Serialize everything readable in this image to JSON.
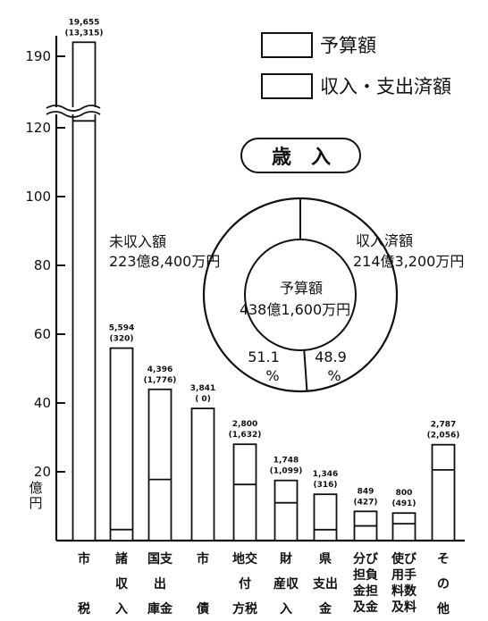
{
  "chart_data": {
    "type": "bar",
    "title": "歳　入",
    "ylabel": [
      "億",
      "円"
    ],
    "y_ticks": [
      {
        "value": 20,
        "label": "20"
      },
      {
        "value": 40,
        "label": "40"
      },
      {
        "value": 60,
        "label": "60"
      },
      {
        "value": 80,
        "label": "80"
      },
      {
        "value": 100,
        "label": "100"
      },
      {
        "value": 120,
        "label": "120"
      },
      {
        "value": 190,
        "label": "190"
      }
    ],
    "axis_break": [
      120,
      190
    ],
    "legend": [
      {
        "id": "budget",
        "label": "予算額"
      },
      {
        "id": "actual",
        "label": "収入・支出済額"
      }
    ],
    "categories": [
      {
        "lines": [
          "市",
          "",
          "税"
        ],
        "budget": 196.55,
        "actual": 133.15,
        "budget_label": "19,655",
        "actual_label": "(13,315)"
      },
      {
        "lines": [
          "諸",
          "収",
          "入"
        ],
        "budget": 55.94,
        "actual": 3.2,
        "budget_label": "5,594",
        "actual_label": "(320)"
      },
      {
        "lines": [
          "国支",
          "出",
          "庫金"
        ],
        "budget": 43.96,
        "actual": 17.76,
        "budget_label": "4,396",
        "actual_label": "(1,776)"
      },
      {
        "lines": [
          "市",
          "",
          "債"
        ],
        "budget": 38.41,
        "actual": 0,
        "budget_label": "3,841",
        "actual_label": "( 0)"
      },
      {
        "lines": [
          "地交",
          "付",
          "方税"
        ],
        "budget": 28.0,
        "actual": 16.32,
        "budget_label": "2,800",
        "actual_label": "(1,632)"
      },
      {
        "lines": [
          "財",
          "産収",
          "入"
        ],
        "budget": 17.48,
        "actual": 10.99,
        "budget_label": "1,748",
        "actual_label": "(1,099)"
      },
      {
        "lines": [
          "県",
          "支出",
          "金"
        ],
        "budget": 13.46,
        "actual": 3.16,
        "budget_label": "1,346",
        "actual_label": "(316)"
      },
      {
        "lines": [
          "分び",
          "担負",
          "金担",
          "及金"
        ],
        "budget": 8.49,
        "actual": 4.27,
        "budget_label": "849",
        "actual_label": "(427)"
      },
      {
        "lines": [
          "使び",
          "用手",
          "料数",
          "及料"
        ],
        "budget": 8.0,
        "actual": 4.91,
        "budget_label": "800",
        "actual_label": "(491)"
      },
      {
        "lines": [
          "そ",
          "の",
          "他"
        ],
        "budget": 27.87,
        "actual": 20.56,
        "budget_label": "2,787",
        "actual_label": "(2,056)"
      }
    ],
    "pie": {
      "unpaid": {
        "label": [
          "未収入額",
          "223億8,400万円"
        ],
        "pct": [
          "51.1",
          "%"
        ],
        "value": 51.1
      },
      "received": {
        "label": [
          "収入済額",
          "214億3,200万円"
        ],
        "pct": [
          "48.9",
          "%"
        ],
        "value": 48.9
      },
      "center": [
        "予算額",
        "438億1,600万円"
      ]
    }
  }
}
